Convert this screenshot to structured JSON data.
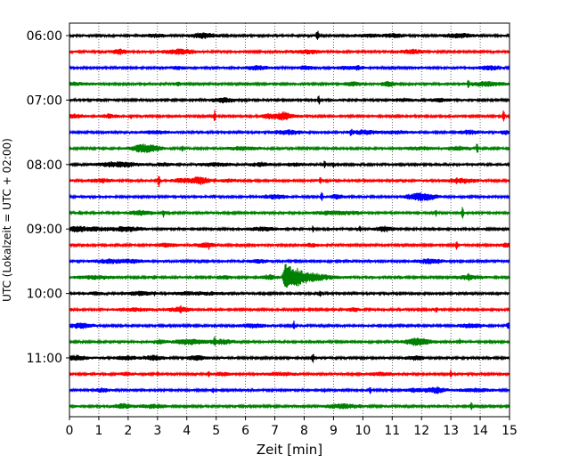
{
  "chart_data": {
    "type": "line",
    "subtype": "helicorder-seismogram",
    "xlabel": "Zeit  [min]",
    "ylabel": "UTC (Lokalzeit = UTC + 02:00)",
    "xlim": [
      0,
      15
    ],
    "x_ticks": [
      "0",
      "1",
      "2",
      "3",
      "4",
      "5",
      "6",
      "7",
      "8",
      "9",
      "10",
      "11",
      "12",
      "13",
      "14",
      "15"
    ],
    "y_ticks": [
      {
        "label": "06:00",
        "minutes_after_06": 0
      },
      {
        "label": "07:00",
        "minutes_after_06": 60
      },
      {
        "label": "08:00",
        "minutes_after_06": 120
      },
      {
        "label": "09:00",
        "minutes_after_06": 180
      },
      {
        "label": "10:00",
        "minutes_after_06": 240
      },
      {
        "label": "11:00",
        "minutes_after_06": 300
      }
    ],
    "trace_interval_min": 15,
    "trace_count": 24,
    "trace_colors": [
      "#000000",
      "#ff0000",
      "#0000ff",
      "#008000"
    ],
    "grid": "vertical dotted lines at each minute",
    "events": [
      {
        "row": 0,
        "x": 8.45,
        "amp": 9
      },
      {
        "row": 2,
        "x": 9.8,
        "amp": 4
      },
      {
        "row": 3,
        "x": 1.35,
        "amp": 3
      },
      {
        "row": 3,
        "x": 13.6,
        "amp": 7
      },
      {
        "row": 4,
        "x": 8.5,
        "amp": 7
      },
      {
        "row": 5,
        "x": 2.1,
        "amp": 4
      },
      {
        "row": 5,
        "x": 4.95,
        "amp": 8
      },
      {
        "row": 5,
        "x": 14.8,
        "amp": 8
      },
      {
        "row": 6,
        "x": 9.6,
        "amp": 6
      },
      {
        "row": 7,
        "x": 3.85,
        "amp": 5
      },
      {
        "row": 7,
        "x": 13.9,
        "amp": 8
      },
      {
        "row": 8,
        "x": 8.7,
        "amp": 6
      },
      {
        "row": 8,
        "x": 9.0,
        "amp": 5
      },
      {
        "row": 9,
        "x": 3.05,
        "amp": 9
      },
      {
        "row": 9,
        "x": 4.95,
        "amp": 4
      },
      {
        "row": 9,
        "x": 8.55,
        "amp": 6
      },
      {
        "row": 9,
        "x": 13.2,
        "amp": 5
      },
      {
        "row": 10,
        "x": 4.95,
        "amp": 4
      },
      {
        "row": 10,
        "x": 8.6,
        "amp": 7
      },
      {
        "row": 11,
        "x": 0.35,
        "amp": 4
      },
      {
        "row": 11,
        "x": 3.2,
        "amp": 6
      },
      {
        "row": 11,
        "x": 12.5,
        "amp": 5
      },
      {
        "row": 11,
        "x": 13.4,
        "amp": 8
      },
      {
        "row": 12,
        "x": 4.45,
        "amp": 4
      },
      {
        "row": 12,
        "x": 8.3,
        "amp": 5
      },
      {
        "row": 12,
        "x": 9.9,
        "amp": 5
      },
      {
        "row": 12,
        "x": 10.65,
        "amp": 5
      },
      {
        "row": 13,
        "x": 4.75,
        "amp": 6
      },
      {
        "row": 13,
        "x": 13.2,
        "amp": 7
      },
      {
        "row": 14,
        "x": 2.15,
        "amp": 4
      },
      {
        "row": 14,
        "x": 12.6,
        "amp": 4
      },
      {
        "row": 15,
        "x": 2.9,
        "amp": 4
      },
      {
        "row": 15,
        "x": 13.6,
        "amp": 7
      },
      {
        "row": 15,
        "x": 7.35,
        "amp": 18,
        "dur": 3.2
      },
      {
        "row": 16,
        "x": 2.9,
        "amp": 4
      },
      {
        "row": 16,
        "x": 8.55,
        "amp": 5
      },
      {
        "row": 17,
        "x": 3.8,
        "amp": 6
      },
      {
        "row": 17,
        "x": 12.5,
        "amp": 5
      },
      {
        "row": 18,
        "x": 4.95,
        "amp": 4
      },
      {
        "row": 18,
        "x": 7.65,
        "amp": 6
      },
      {
        "row": 18,
        "x": 14.95,
        "amp": 6
      },
      {
        "row": 19,
        "x": 4.95,
        "amp": 8
      },
      {
        "row": 19,
        "x": 13.3,
        "amp": 5
      },
      {
        "row": 20,
        "x": 8.3,
        "amp": 7
      },
      {
        "row": 21,
        "x": 3.0,
        "amp": 5
      },
      {
        "row": 21,
        "x": 4.75,
        "amp": 5
      },
      {
        "row": 21,
        "x": 13.0,
        "amp": 6
      },
      {
        "row": 22,
        "x": 4.9,
        "amp": 5
      },
      {
        "row": 22,
        "x": 8.7,
        "amp": 4
      },
      {
        "row": 22,
        "x": 10.25,
        "amp": 6
      },
      {
        "row": 22,
        "x": 12.55,
        "amp": 5
      },
      {
        "row": 23,
        "x": 3.05,
        "amp": 4
      },
      {
        "row": 23,
        "x": 13.7,
        "amp": 6
      }
    ]
  }
}
